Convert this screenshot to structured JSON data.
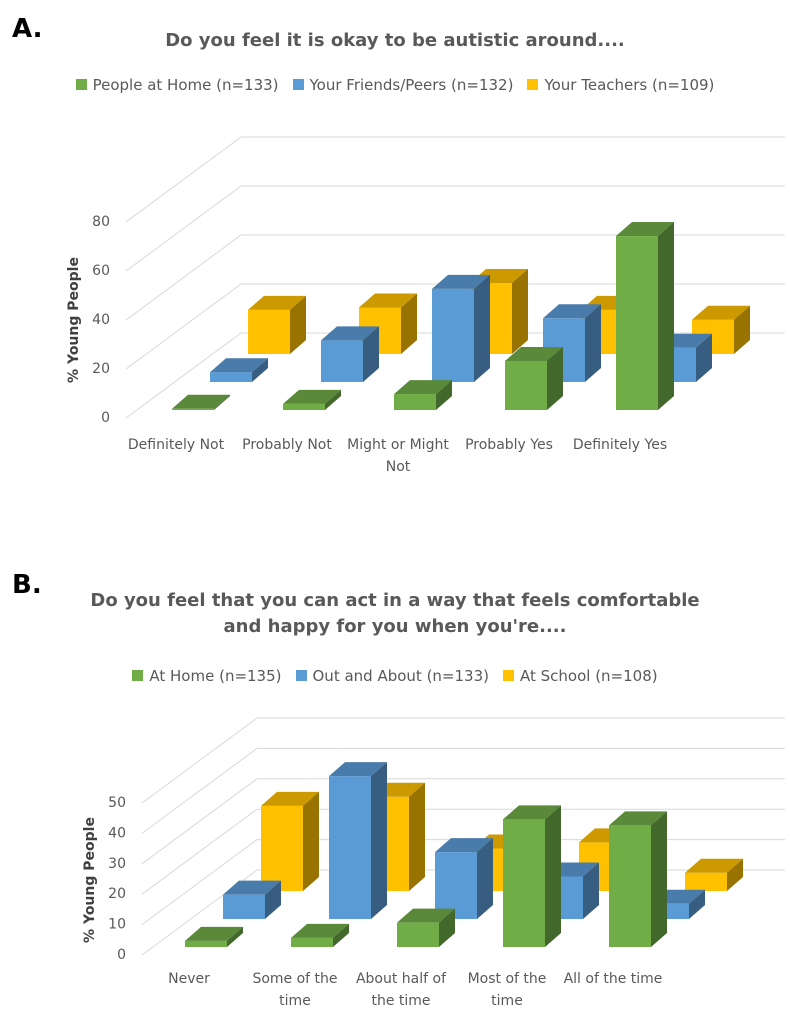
{
  "chart_data": [
    {
      "type": "bar3d",
      "panel_label": "A.",
      "title": "Do you feel it is okay to be autistic around....",
      "y_label": "% Young People",
      "categories": [
        "Definitely Not",
        "Probably Not",
        "Might or Might Not",
        "Probably Yes",
        "Definitely Yes"
      ],
      "series": [
        {
          "name": "People at Home (n=133)",
          "color": "#70ad47",
          "values": [
            0.5,
            2.5,
            6.5,
            20,
            71
          ]
        },
        {
          "name": "Your Friends/Peers (n=132)",
          "color": "#5b9bd5",
          "values": [
            4,
            17,
            38,
            26,
            14
          ]
        },
        {
          "name": "Your Teachers (n=109)",
          "color": "#ffc000",
          "values": [
            18,
            19,
            29,
            18,
            14
          ]
        }
      ],
      "ylim": [
        0,
        80
      ],
      "yticks": [
        0,
        20,
        40,
        60,
        80
      ],
      "grid": true
    },
    {
      "type": "bar3d",
      "panel_label": "B.",
      "title": "Do you feel that you can act in a way that feels comfortable and happy for you when you're....",
      "y_label": "% Young People",
      "categories": [
        "Never",
        "Some of the time",
        "About half of the time",
        "Most of the time",
        "All of the time"
      ],
      "series": [
        {
          "name": "At Home (n=135)",
          "color": "#70ad47",
          "values": [
            2,
            3,
            8,
            42,
            40
          ]
        },
        {
          "name": "Out and About (n=133)",
          "color": "#5b9bd5",
          "values": [
            8,
            47,
            22,
            14,
            5
          ]
        },
        {
          "name": "At School (n=108)",
          "color": "#ffc000",
          "values": [
            28,
            31,
            14,
            16,
            6
          ]
        }
      ],
      "ylim": [
        0,
        50
      ],
      "yticks": [
        0,
        10,
        20,
        30,
        40,
        50
      ],
      "grid": true
    }
  ]
}
